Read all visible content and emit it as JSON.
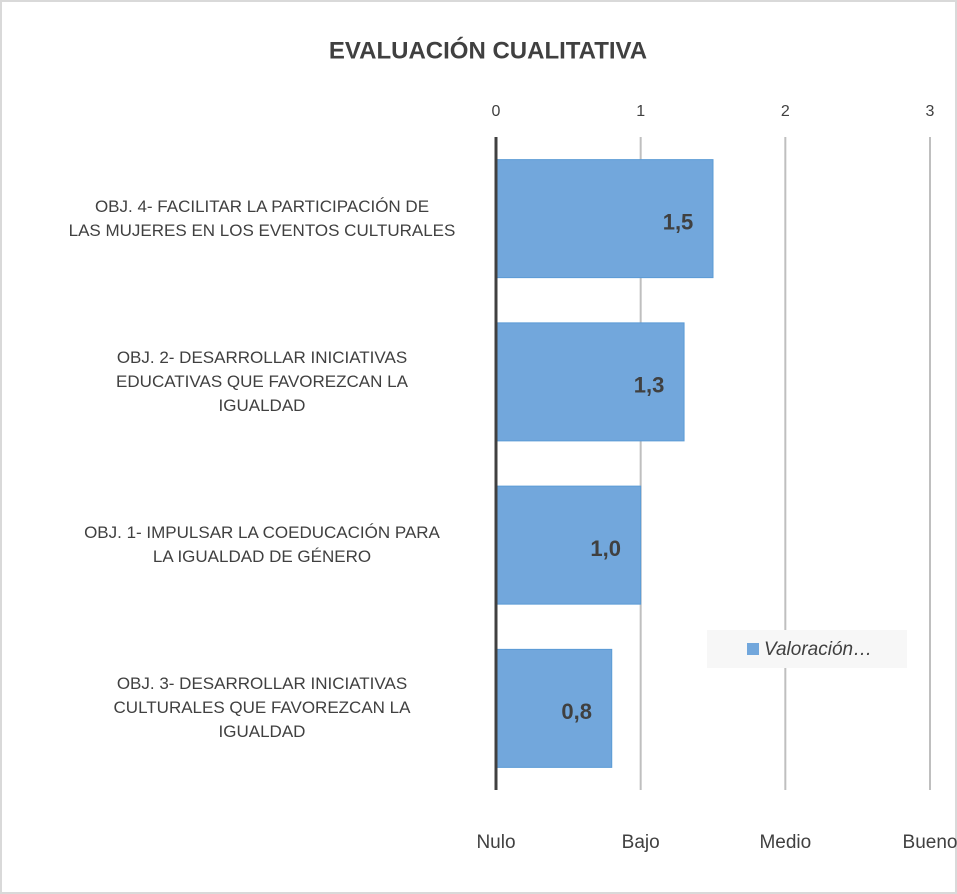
{
  "chart_data": {
    "type": "barh",
    "title": "EVALUACIÓN CUALITATIVA",
    "categories": [
      "OBJ. 4-  FACILITAR LA PARTICIPACIÓN DE\nLAS MUJERES EN LOS EVENTOS CULTURALES",
      "OBJ. 2-  DESARROLLAR INICIATIVAS\nEDUCATIVAS QUE FAVOREZCAN LA\nIGUALDAD",
      "OBJ. 1- IMPULSAR LA COEDUCACIÓN PARA\nLA IGUALDAD DE GÉNERO",
      "OBJ. 3- DESARROLLAR INICIATIVAS\nCULTURALES QUE FAVOREZCAN LA\nIGUALDAD"
    ],
    "series": [
      {
        "name": "Valoración…",
        "color": "#72a7dc",
        "values": [
          1.5,
          1.3,
          1.0,
          0.8
        ],
        "value_labels": [
          "1,5",
          "1,3",
          "1,0",
          "0,8"
        ]
      }
    ],
    "xlim": [
      0,
      3
    ],
    "xticks": [
      0,
      1,
      2,
      3
    ],
    "xtick_labels_bottom": [
      "Nulo",
      "Bajo",
      "Medio",
      "Bueno"
    ],
    "grid": true
  }
}
